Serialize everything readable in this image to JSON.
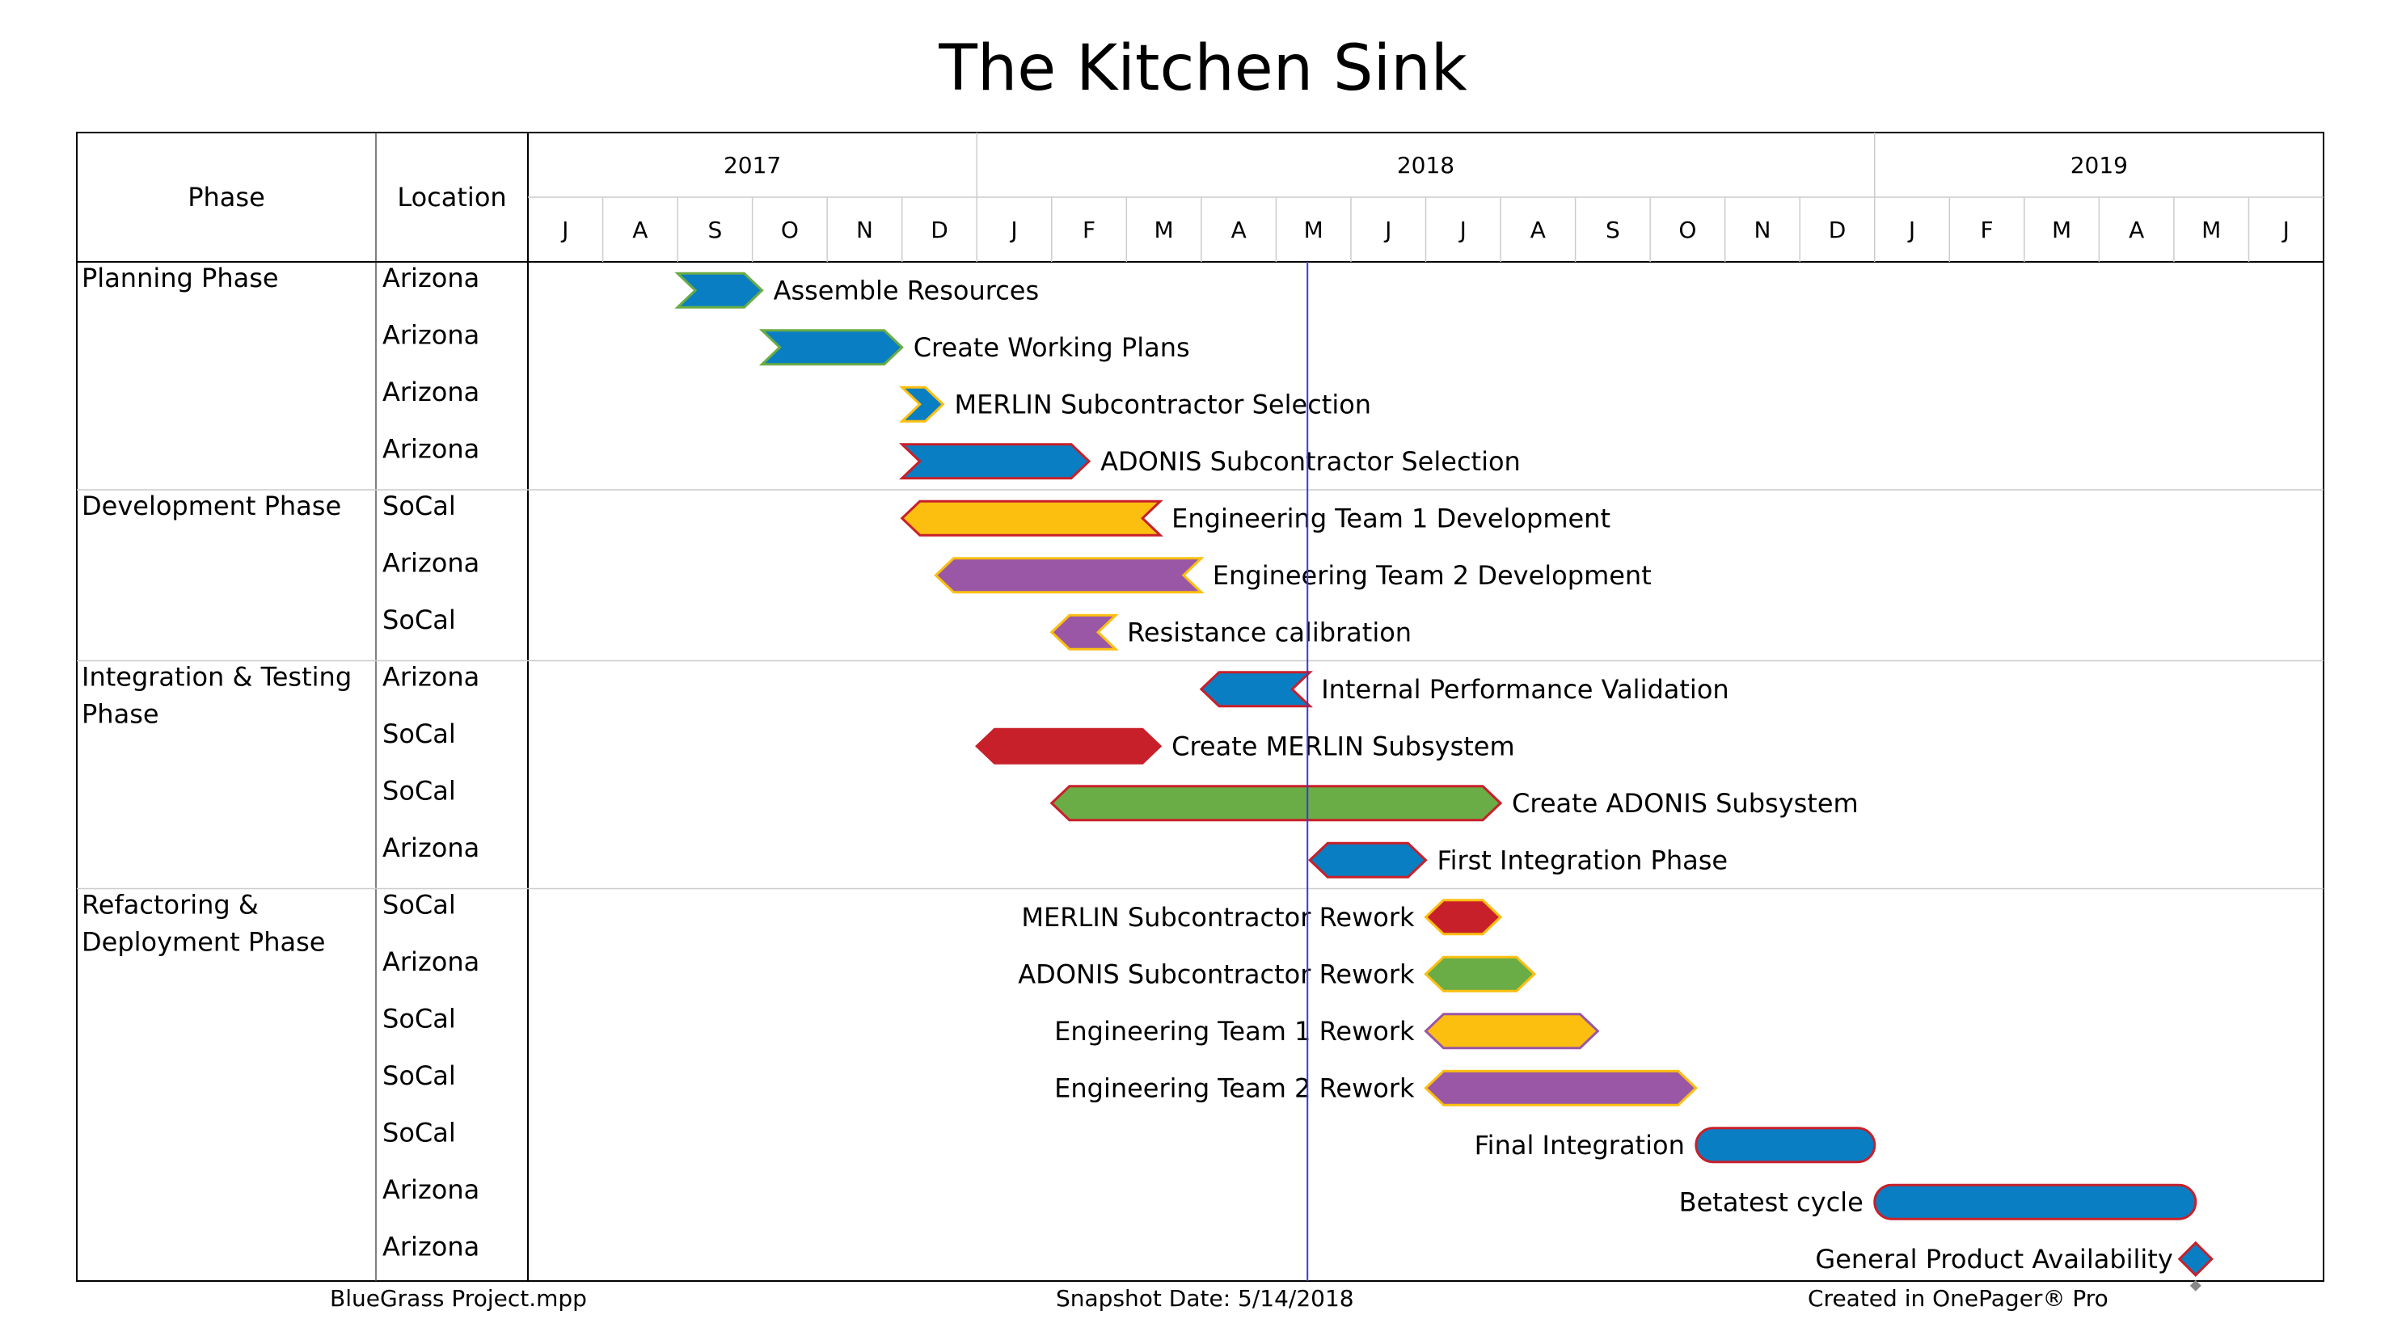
{
  "title": "The Kitchen Sink",
  "header": {
    "phase_label": "Phase",
    "location_label": "Location"
  },
  "footer": {
    "file": "BlueGrass Project.mpp",
    "snapshot": "Snapshot Date: 5/14/2018",
    "created": "Created in OnePager® Pro"
  },
  "colors": {
    "blue": "#0a7ec2",
    "yellow": "#fcbf10",
    "purple": "#9a57a5",
    "red": "#c8202a",
    "green": "#6aac45",
    "today_line": "#3b3bd6",
    "grid": "#cccccc"
  },
  "chart_data": {
    "type": "gantt",
    "title": "The Kitchen Sink",
    "timeline": {
      "start": "2017-07",
      "end": "2019-06",
      "years": [
        "2017",
        "2018",
        "2019"
      ],
      "months": [
        "J",
        "A",
        "S",
        "O",
        "N",
        "D",
        "J",
        "F",
        "M",
        "A",
        "M",
        "J",
        "J",
        "A",
        "S",
        "O",
        "N",
        "D",
        "J",
        "F",
        "M",
        "A",
        "M",
        "J"
      ]
    },
    "snapshot_date": "2018-05-14",
    "phases": [
      {
        "name": "Planning Phase",
        "rows": 4
      },
      {
        "name": "Development Phase",
        "rows": 3
      },
      {
        "name": "Integration & Testing Phase",
        "rows": 4
      },
      {
        "name": "Refactoring & Deployment Phase",
        "rows": 7
      }
    ],
    "tasks": [
      {
        "name": "Assemble Resources",
        "location": "Arizona",
        "start": "2017-09-01",
        "end": "2017-10-05",
        "color": "blue",
        "border": "green",
        "shape": "chevron-right",
        "label_side": "right"
      },
      {
        "name": "Create Working Plans",
        "location": "Arizona",
        "start": "2017-10-05",
        "end": "2017-12-01",
        "color": "blue",
        "border": "green",
        "shape": "chevron-right",
        "label_side": "right"
      },
      {
        "name": "MERLIN Subcontractor Selection",
        "location": "Arizona",
        "start": "2017-12-01",
        "end": "2017-12-18",
        "color": "blue",
        "border": "yellow",
        "shape": "chevron-right",
        "label_side": "right"
      },
      {
        "name": "ADONIS Subcontractor Selection",
        "location": "Arizona",
        "start": "2017-12-01",
        "end": "2018-02-15",
        "color": "blue",
        "border": "red",
        "shape": "chevron-right",
        "label_side": "right"
      },
      {
        "name": "Engineering Team 1 Development",
        "location": "SoCal",
        "start": "2017-12-01",
        "end": "2018-03-15",
        "color": "yellow",
        "border": "red",
        "shape": "chevron-left",
        "label_side": "right"
      },
      {
        "name": "Engineering Team 2 Development",
        "location": "Arizona",
        "start": "2017-12-15",
        "end": "2018-04-01",
        "color": "purple",
        "border": "yellow",
        "shape": "chevron-left",
        "label_side": "right"
      },
      {
        "name": "Resistance calibration",
        "location": "SoCal",
        "start": "2018-02-01",
        "end": "2018-02-25",
        "color": "purple",
        "border": "yellow",
        "shape": "chevron-left",
        "label_side": "right"
      },
      {
        "name": "Internal Performance Validation",
        "location": "Arizona",
        "start": "2018-04-01",
        "end": "2018-05-15",
        "color": "blue",
        "border": "red",
        "shape": "chevron-left",
        "label_side": "right"
      },
      {
        "name": "Create MERLIN Subsystem",
        "location": "SoCal",
        "start": "2018-01-01",
        "end": "2018-03-15",
        "color": "red",
        "border": "red",
        "shape": "hexagon",
        "label_side": "right"
      },
      {
        "name": "Create ADONIS Subsystem",
        "location": "SoCal",
        "start": "2018-02-01",
        "end": "2018-08-01",
        "color": "green",
        "border": "red",
        "shape": "hexagon",
        "label_side": "right"
      },
      {
        "name": "First Integration Phase",
        "location": "Arizona",
        "start": "2018-05-15",
        "end": "2018-07-01",
        "color": "blue",
        "border": "red",
        "shape": "hexagon",
        "label_side": "right"
      },
      {
        "name": "MERLIN Subcontractor Rework",
        "location": "SoCal",
        "start": "2018-07-01",
        "end": "2018-08-01",
        "color": "red",
        "border": "yellow",
        "shape": "hexagon",
        "label_side": "left"
      },
      {
        "name": "ADONIS Subcontractor Rework",
        "location": "Arizona",
        "start": "2018-07-01",
        "end": "2018-08-15",
        "color": "green",
        "border": "yellow",
        "shape": "hexagon",
        "label_side": "left"
      },
      {
        "name": "Engineering Team 1 Rework",
        "location": "SoCal",
        "start": "2018-07-01",
        "end": "2018-09-10",
        "color": "yellow",
        "border": "purple",
        "shape": "hexagon",
        "label_side": "left"
      },
      {
        "name": "Engineering Team 2 Rework",
        "location": "SoCal",
        "start": "2018-07-01",
        "end": "2018-10-20",
        "color": "purple",
        "border": "yellow",
        "shape": "hexagon",
        "label_side": "left"
      },
      {
        "name": "Final Integration",
        "location": "SoCal",
        "start": "2018-10-20",
        "end": "2019-01-01",
        "color": "blue",
        "border": "red",
        "shape": "rounded",
        "label_side": "left"
      },
      {
        "name": "Betatest cycle",
        "location": "Arizona",
        "start": "2019-01-01",
        "end": "2019-05-10",
        "color": "blue",
        "border": "red",
        "shape": "rounded",
        "label_side": "left"
      },
      {
        "name": "General Product Availability",
        "location": "Arizona",
        "start": "2019-05-10",
        "end": "2019-05-10",
        "color": "blue",
        "border": "red",
        "shape": "milestone",
        "label_side": "left"
      }
    ]
  }
}
